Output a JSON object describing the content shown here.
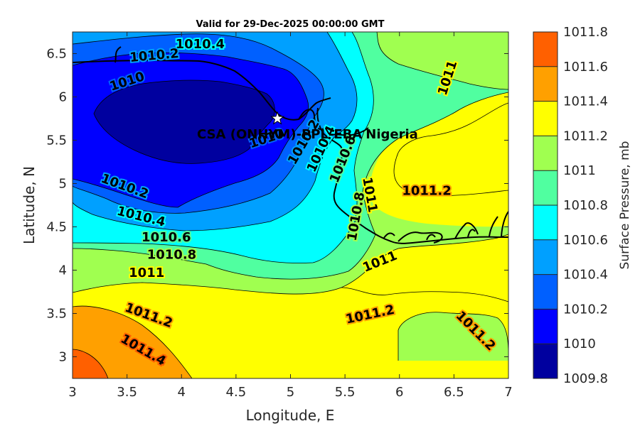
{
  "chart_data": {
    "type": "contour",
    "title": "Valid for 29-Dec-2025 00:00:00 GMT",
    "xlabel": "Longitude, E",
    "ylabel": "Latitude, N",
    "xlim": [
      3,
      7
    ],
    "ylim": [
      2.75,
      6.75
    ],
    "x_ticks": [
      3,
      3.5,
      4,
      4.5,
      5,
      5.5,
      6,
      6.5,
      7
    ],
    "x_tick_labels": [
      "3",
      "3.5",
      "4",
      "4.5",
      "5",
      "5.5",
      "6",
      "6.5",
      "7"
    ],
    "y_ticks": [
      3,
      3.5,
      4,
      4.5,
      5,
      5.5,
      6,
      6.5
    ],
    "y_tick_labels": [
      "3",
      "3.5",
      "4",
      "4.5",
      "5",
      "5.5",
      "6",
      "6.5"
    ],
    "colorbar": {
      "label": "Surface Pressure, mb",
      "levels": [
        1009.8,
        1010,
        1010.2,
        1010.4,
        1010.6,
        1010.8,
        1011,
        1011.2,
        1011.4,
        1011.6,
        1011.8
      ],
      "tick_labels": [
        "1009.8",
        "1010",
        "1010.2",
        "1010.4",
        "1010.6",
        "1010.8",
        "1011",
        "1011.2",
        "1011.4",
        "1011.6",
        "1011.8"
      ],
      "colors": [
        "#00009f",
        "#0000ff",
        "#0060ff",
        "#00a0ff",
        "#00ffff",
        "#50ffa0",
        "#a0ff50",
        "#ffff00",
        "#ffa000",
        "#ff6000",
        "#ff0000"
      ]
    },
    "contour_labels": [
      {
        "text": "1010.4",
        "lon": 4.17,
        "lat": 6.61,
        "rot": 0
      },
      {
        "text": "1010.2",
        "lon": 3.75,
        "lat": 6.48,
        "rot": -5
      },
      {
        "text": "1010",
        "lon": 3.5,
        "lat": 6.18,
        "rot": -18
      },
      {
        "text": "1011",
        "lon": 6.44,
        "lat": 6.22,
        "rot": -72
      },
      {
        "text": "1010",
        "lon": 4.78,
        "lat": 5.52,
        "rot": -18
      },
      {
        "text": "1010.2",
        "lon": 5.12,
        "lat": 5.48,
        "rot": -60
      },
      {
        "text": "1010.4",
        "lon": 5.28,
        "lat": 5.4,
        "rot": -65
      },
      {
        "text": "1010.6",
        "lon": 5.48,
        "lat": 5.28,
        "rot": -68
      },
      {
        "text": "1011",
        "lon": 5.73,
        "lat": 4.87,
        "rot": 80
      },
      {
        "text": "1010.8",
        "lon": 5.6,
        "lat": 4.62,
        "rot": -80
      },
      {
        "text": "1011.2",
        "lon": 6.25,
        "lat": 4.92,
        "rot": 0
      },
      {
        "text": "1010.2",
        "lon": 3.48,
        "lat": 4.97,
        "rot": 20
      },
      {
        "text": "1010.4",
        "lon": 3.63,
        "lat": 4.62,
        "rot": 14
      },
      {
        "text": "1010.6",
        "lon": 3.86,
        "lat": 4.38,
        "rot": 0
      },
      {
        "text": "1010.8",
        "lon": 3.91,
        "lat": 4.18,
        "rot": 0
      },
      {
        "text": "1011",
        "lon": 3.68,
        "lat": 3.97,
        "rot": 0
      },
      {
        "text": "1011",
        "lon": 5.82,
        "lat": 4.1,
        "rot": -22
      },
      {
        "text": "1011.2",
        "lon": 3.7,
        "lat": 3.48,
        "rot": 20
      },
      {
        "text": "1011.4",
        "lon": 3.65,
        "lat": 3.08,
        "rot": 30
      },
      {
        "text": "1011.2",
        "lon": 5.73,
        "lat": 3.49,
        "rot": -12
      },
      {
        "text": "1011.2",
        "lon": 6.7,
        "lat": 3.3,
        "rot": 45
      }
    ],
    "annotations": [
      {
        "text": "CSA (ONHYM)-PPL-EBA",
        "lon": 4.9,
        "lat": 5.57
      },
      {
        "text": "Nigeria",
        "lon": 5.93,
        "lat": 5.57
      }
    ],
    "marker": {
      "symbol": "star",
      "lon": 4.88,
      "lat": 5.75
    }
  }
}
